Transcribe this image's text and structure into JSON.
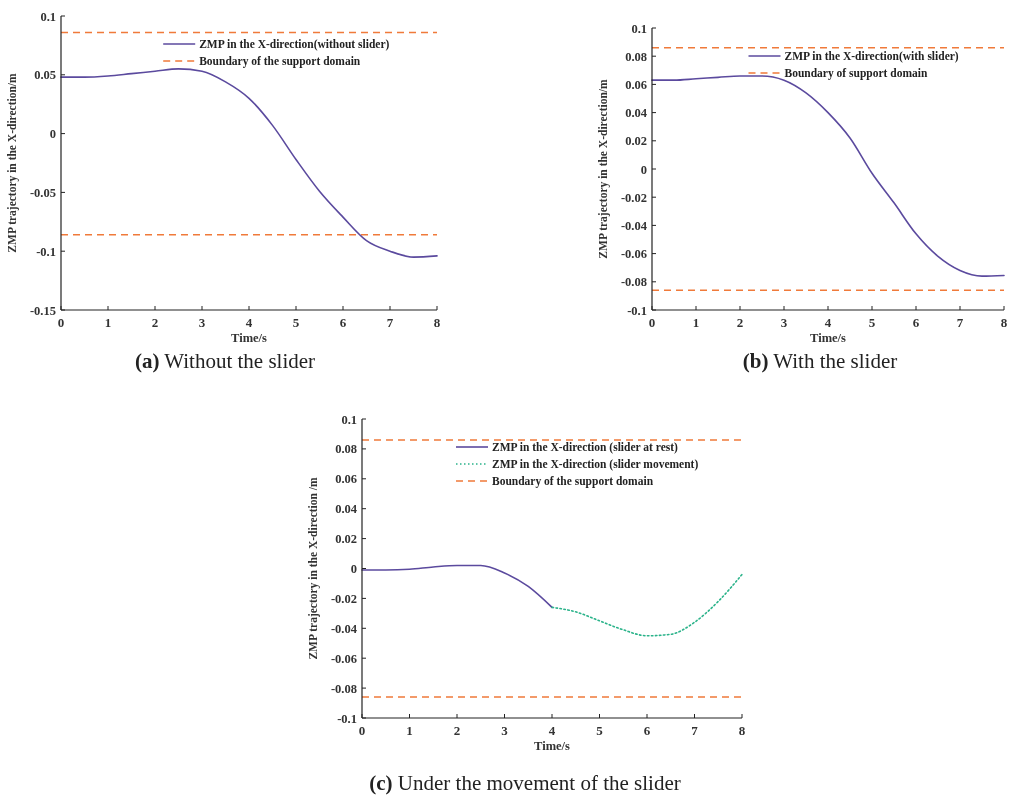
{
  "chart_data": [
    {
      "type": "line",
      "title": "(a) Without the slider",
      "xlabel": "Time/s",
      "ylabel": "ZMP trajectory in the X-direction/m",
      "xlim": [
        0,
        8
      ],
      "xticks": [
        0,
        1,
        2,
        3,
        4,
        5,
        6,
        7,
        8
      ],
      "ylim": [
        -0.15,
        0.1
      ],
      "yticks": [
        -0.15,
        -0.1,
        -0.05,
        0,
        0.05,
        0.1
      ],
      "legend": "top right",
      "grid": false,
      "series": [
        {
          "name": "ZMP in the X-direction(without slider)",
          "color": "#5b4a9e",
          "line_style": "solid",
          "x": [
            0,
            0.5,
            1,
            1.5,
            2,
            2.5,
            3,
            3.5,
            4,
            4.5,
            5,
            5.5,
            6,
            6.5,
            7,
            7.5,
            8
          ],
          "values": [
            0.048,
            0.048,
            0.049,
            0.051,
            0.053,
            0.055,
            0.053,
            0.044,
            0.03,
            0.007,
            -0.022,
            -0.049,
            -0.071,
            -0.091,
            -0.1,
            -0.105,
            -0.104
          ]
        }
      ],
      "ref_lines": [
        {
          "axis": "y",
          "value": 0.086,
          "label": "Boundary of the support domain",
          "color": "#f07a3a",
          "line_style": "dashed"
        },
        {
          "axis": "y",
          "value": -0.086,
          "color": "#f07a3a",
          "line_style": "dashed"
        }
      ]
    },
    {
      "type": "line",
      "title": "(b) With the slider",
      "xlabel": "Time/s",
      "ylabel": "ZMP trajectory in the X-direction/m",
      "xlim": [
        0,
        8
      ],
      "xticks": [
        0,
        1,
        2,
        3,
        4,
        5,
        6,
        7,
        8
      ],
      "ylim": [
        -0.1,
        0.1
      ],
      "yticks": [
        -0.1,
        -0.08,
        -0.06,
        -0.04,
        -0.02,
        0,
        0.02,
        0.04,
        0.06,
        0.08,
        0.1
      ],
      "legend": "top right",
      "grid": false,
      "series": [
        {
          "name": "ZMP in the X-direction(with slider)",
          "color": "#5b4a9e",
          "line_style": "solid",
          "x": [
            0,
            0.5,
            1,
            1.5,
            2,
            2.5,
            3,
            3.5,
            4,
            4.5,
            5,
            5.5,
            6,
            6.5,
            7,
            7.5,
            8
          ],
          "values": [
            0.063,
            0.063,
            0.064,
            0.065,
            0.066,
            0.066,
            0.063,
            0.054,
            0.04,
            0.022,
            -0.003,
            -0.024,
            -0.046,
            -0.062,
            -0.072,
            -0.076,
            -0.0755
          ]
        }
      ],
      "ref_lines": [
        {
          "axis": "y",
          "value": 0.086,
          "label": "Boundary of support domain",
          "color": "#f07a3a",
          "line_style": "dashed"
        },
        {
          "axis": "y",
          "value": -0.086,
          "color": "#f07a3a",
          "line_style": "dashed"
        }
      ]
    },
    {
      "type": "line",
      "title": "(c) Under the movement of the slider",
      "xlabel": "Time/s",
      "ylabel": "ZMP trajectory in the X-direction /m",
      "xlim": [
        0,
        8
      ],
      "xticks": [
        0,
        1,
        2,
        3,
        4,
        5,
        6,
        7,
        8
      ],
      "ylim": [
        -0.1,
        0.1
      ],
      "yticks": [
        -0.1,
        -0.08,
        -0.06,
        -0.04,
        -0.02,
        0,
        0.02,
        0.04,
        0.06,
        0.08,
        0.1
      ],
      "legend": "top right",
      "grid": false,
      "series": [
        {
          "name": "ZMP in the X-direction (slider at rest)",
          "color": "#5b4a9e",
          "line_style": "solid",
          "x": [
            0,
            0.5,
            1,
            1.5,
            2,
            2.5,
            3,
            3.5,
            4
          ],
          "values": [
            -0.001,
            -0.001,
            -0.0005,
            0.001,
            0.002,
            0.002,
            -0.003,
            -0.012,
            -0.026
          ]
        },
        {
          "name": "ZMP in the X-direction (slider movement)",
          "color": "#2bb38a",
          "line_style": "dotted",
          "x": [
            4,
            4.5,
            5,
            5.5,
            6,
            6.5,
            7,
            7.5,
            8
          ],
          "values": [
            -0.026,
            -0.029,
            -0.035,
            -0.041,
            -0.045,
            -0.044,
            -0.036,
            -0.022,
            -0.004
          ]
        }
      ],
      "ref_lines": [
        {
          "axis": "y",
          "value": 0.086,
          "label": "Boundary of the support domain",
          "color": "#f07a3a",
          "line_style": "dashed"
        },
        {
          "axis": "y",
          "value": -0.086,
          "color": "#f07a3a",
          "line_style": "dashed"
        }
      ]
    }
  ]
}
